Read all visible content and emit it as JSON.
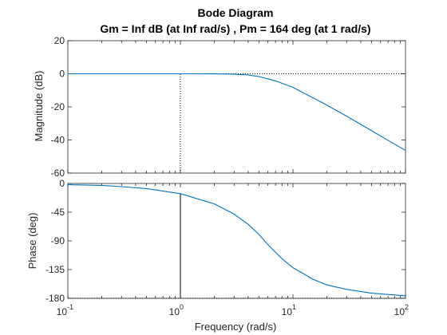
{
  "figure": {
    "title": "Bode Diagram",
    "subtitle": "Gm = Inf dB (at Inf rad/s) ,  Pm = 164 deg (at 1 rad/s)"
  },
  "colors": {
    "series": "#0072BD",
    "axes": "#262626",
    "background": "#ffffff"
  },
  "chart_data": [
    {
      "type": "line",
      "panel": "magnitude",
      "ylabel": "Magnitude (dB)",
      "xlabel": "",
      "xscale": "log",
      "xlim": [
        0.1,
        100
      ],
      "ylim": [
        -60,
        20
      ],
      "yticks": [
        20,
        0,
        -20,
        -40,
        -60
      ],
      "ytick_labels": [
        "20",
        "0",
        "-20",
        "-40",
        "-60"
      ],
      "grid": false,
      "reference_lines": [
        {
          "orientation": "horizontal",
          "value": 0,
          "style": "dotted"
        },
        {
          "orientation": "vertical",
          "value": 1,
          "style": "dotted",
          "from": -60,
          "to": 0
        }
      ],
      "series": [
        {
          "x": [
            0.1,
            0.2,
            0.5,
            1,
            2,
            3,
            4,
            5,
            7,
            10,
            20,
            30,
            50,
            70,
            100
          ],
          "y": [
            0,
            0,
            0,
            0,
            -0.05,
            -0.2,
            -0.7,
            -1.7,
            -4.3,
            -8.2,
            -18.9,
            -25.6,
            -34.4,
            -40.2,
            -46.3
          ]
        }
      ]
    },
    {
      "type": "line",
      "panel": "phase",
      "ylabel": "Phase (deg)",
      "xlabel": "Frequency  (rad/s)",
      "xscale": "log",
      "xlim": [
        0.1,
        100
      ],
      "xticks": [
        0.1,
        1,
        10,
        100
      ],
      "xtick_labels": [
        [
          "10",
          "-1"
        ],
        [
          "10",
          "0"
        ],
        [
          "10",
          "1"
        ],
        [
          "10",
          "2"
        ]
      ],
      "ylim": [
        -180,
        0
      ],
      "yticks": [
        0,
        -45,
        -90,
        -135,
        -180
      ],
      "ytick_labels": [
        "0",
        "-45",
        "-90",
        "-135",
        "-180"
      ],
      "grid": false,
      "reference_lines": [
        {
          "orientation": "horizontal",
          "value": -180,
          "style": "dotted"
        },
        {
          "orientation": "vertical",
          "value": 1,
          "style": "solid",
          "from": -180,
          "to": -16
        }
      ],
      "series": [
        {
          "x": [
            0.1,
            0.2,
            0.3,
            0.5,
            1,
            2,
            3,
            4,
            5,
            6,
            7,
            8,
            10,
            15,
            20,
            30,
            50,
            70,
            100
          ],
          "y": [
            -2,
            -3,
            -5,
            -8,
            -16,
            -32,
            -48,
            -64,
            -80,
            -96,
            -108,
            -118,
            -132,
            -150,
            -159,
            -166,
            -172,
            -174,
            -176
          ]
        }
      ]
    }
  ]
}
